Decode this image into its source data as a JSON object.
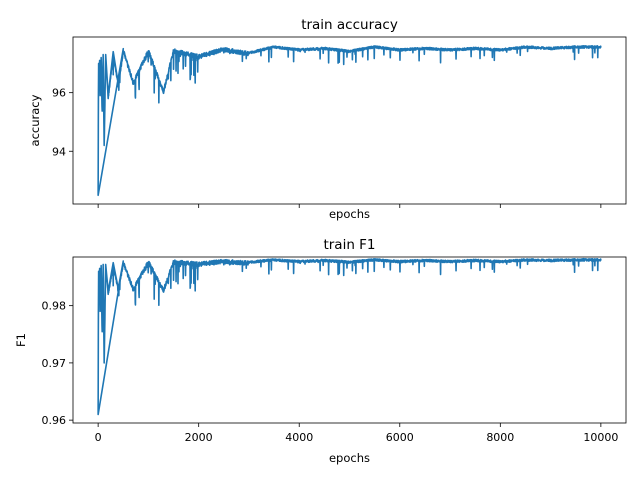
{
  "chart_data": [
    {
      "type": "line",
      "title": "train accuracy",
      "xlabel": "epochs",
      "ylabel": "accuracy",
      "xlim": [
        -500,
        10500
      ],
      "ylim": [
        92.2,
        97.9
      ],
      "xticks": [
        0,
        2000,
        4000,
        6000,
        8000,
        10000
      ],
      "xtick_labels_visible": false,
      "yticks": [
        94,
        96
      ],
      "ytick_labels": [
        "94",
        "96"
      ],
      "grid": false,
      "color": "#1f77b4",
      "series": [
        {
          "x": [
            0,
            5,
            10,
            20,
            30,
            40,
            60,
            80,
            100,
            120,
            150,
            200,
            300,
            400,
            500,
            700,
            1000,
            1300,
            1500,
            2000,
            2500,
            3000,
            3500,
            4000,
            4500,
            5000,
            5500,
            6000,
            6500,
            7000,
            7500,
            8000,
            8500,
            9000,
            9500,
            10000
          ],
          "values": [
            92.5,
            95.8,
            97.0,
            96.2,
            97.1,
            95.9,
            97.2,
            95.4,
            97.3,
            94.2,
            97.3,
            95.9,
            97.4,
            96.3,
            97.5,
            96.4,
            97.5,
            96.1,
            97.5,
            97.3,
            97.55,
            97.4,
            97.6,
            97.5,
            97.55,
            97.45,
            97.6,
            97.5,
            97.55,
            97.5,
            97.55,
            97.5,
            97.6,
            97.55,
            97.6,
            97.6
          ]
        }
      ]
    },
    {
      "type": "line",
      "title": "train F1",
      "xlabel": "epochs",
      "ylabel": "F1",
      "xlim": [
        -500,
        10500
      ],
      "ylim": [
        0.9595,
        0.9885
      ],
      "xticks": [
        0,
        2000,
        4000,
        6000,
        8000,
        10000
      ],
      "xtick_labels": [
        "0",
        "2000",
        "4000",
        "6000",
        "8000",
        "10000"
      ],
      "yticks": [
        0.96,
        0.97,
        0.98
      ],
      "ytick_labels": [
        "0.96",
        "0.97",
        "0.98"
      ],
      "grid": false,
      "color": "#1f77b4",
      "series": [
        {
          "x": [
            0,
            5,
            10,
            20,
            30,
            40,
            60,
            80,
            100,
            120,
            150,
            200,
            300,
            400,
            500,
            700,
            1000,
            1300,
            1500,
            2000,
            2500,
            3000,
            3500,
            4000,
            4500,
            5000,
            5500,
            6000,
            6500,
            7000,
            7500,
            8000,
            8500,
            9000,
            9500,
            10000
          ],
          "values": [
            0.961,
            0.979,
            0.986,
            0.9805,
            0.9865,
            0.979,
            0.987,
            0.9755,
            0.9872,
            0.97,
            0.9872,
            0.9825,
            0.9875,
            0.983,
            0.9878,
            0.9832,
            0.988,
            0.983,
            0.988,
            0.9876,
            0.9881,
            0.9878,
            0.9882,
            0.9879,
            0.9881,
            0.9878,
            0.9882,
            0.9879,
            0.9881,
            0.9879,
            0.9881,
            0.9879,
            0.9882,
            0.9881,
            0.9882,
            0.9882
          ]
        }
      ]
    }
  ]
}
